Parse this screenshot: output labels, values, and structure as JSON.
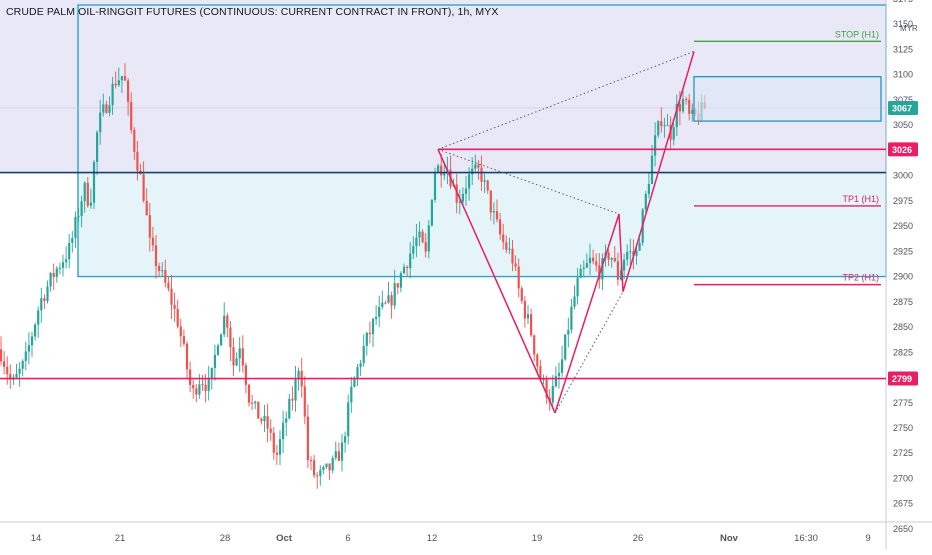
{
  "chart_data": {
    "type": "candlestick",
    "title": "CRUDE PALM OIL-RINGGIT FUTURES (CONTINUOUS: CURRENT CONTRACT IN FRONT), 1h, MYX",
    "currency": "MYR",
    "ylim": [
      2650,
      3175
    ],
    "y_ticks": [
      3175,
      3150,
      3125,
      3100,
      3075,
      3050,
      3000,
      2975,
      2950,
      2925,
      2900,
      2875,
      2850,
      2825,
      2775,
      2750,
      2725,
      2700,
      2675,
      2650
    ],
    "x_ticks": [
      "14",
      "21",
      "28",
      "Oct",
      "6",
      "12",
      "19",
      "26",
      "Nov",
      "16:30",
      "9"
    ],
    "price_labels": [
      {
        "value": 3067,
        "text": "3067",
        "color": "#26a69a"
      },
      {
        "value": 3026,
        "text": "3026",
        "color": "#e91e63"
      },
      {
        "value": 2799,
        "text": "2799",
        "color": "#e91e63"
      }
    ],
    "levels": [
      {
        "name": "STOP (H1)",
        "value": 3133,
        "color": "#43a047"
      },
      {
        "name": "TP1 (H1)",
        "value": 2970,
        "color": "#e91e63"
      },
      {
        "name": "TP2 (H1)",
        "value": 2892,
        "color": "#e91e63"
      }
    ],
    "zones": [
      {
        "name": "upper-zone",
        "from": 3003,
        "to": 3165,
        "color": "#e8e8f7"
      },
      {
        "name": "lower-zone",
        "from": 2900,
        "to": 3003,
        "color": "#e4f4f9"
      }
    ],
    "horizontal_lines": [
      {
        "name": "resistance-3026",
        "value": 3026,
        "color": "#e91e63"
      },
      {
        "name": "support-2799",
        "value": 2799,
        "color": "#e91e63"
      },
      {
        "name": "zone-line-3003",
        "value": 3003,
        "color": "#1a3e72"
      }
    ],
    "pattern_points": {
      "X": 3026,
      "A": 2765,
      "B": 2962,
      "C": 2885,
      "D": 3123
    },
    "last_price": 3067
  }
}
